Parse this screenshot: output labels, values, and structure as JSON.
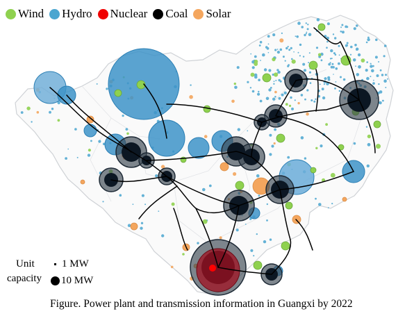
{
  "legend": {
    "items": [
      {
        "label": "Wind",
        "color": "#8fd14f",
        "icon": "green-circle-icon"
      },
      {
        "label": "Hydro",
        "color": "#4ba6d0",
        "icon": "blue-circle-icon"
      },
      {
        "label": "Nuclear",
        "color": "#f00000",
        "icon": "red-circle-icon"
      },
      {
        "label": "Coal",
        "color": "#000000",
        "icon": "black-circle-icon"
      },
      {
        "label": "Solar",
        "color": "#f4a65e",
        "icon": "orange-circle-icon"
      }
    ]
  },
  "capacity_legend": {
    "title_line1": "Unit",
    "title_line2": "capacity",
    "small_label": "1 MW",
    "large_label": "10 MW"
  },
  "caption": "Figure. Power plant and transmission information in Guangxi by 2022"
}
